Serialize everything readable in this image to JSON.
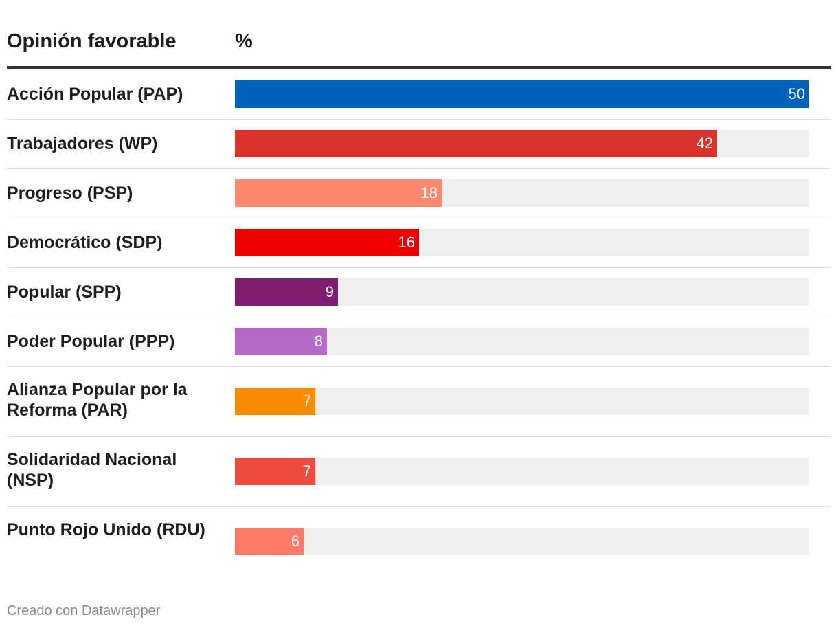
{
  "chart_data": {
    "type": "bar",
    "orientation": "horizontal",
    "header_label": "Opinión favorable",
    "header_unit": "%",
    "categories": [
      "Acción Popular (PAP)",
      "Trabajadores (WP)",
      "Progreso (PSP)",
      "Democrático (SDP)",
      "Popular (SPP)",
      "Poder Popular (PPP)",
      "Alianza Popular por la Reforma (PAR)",
      "Solidaridad Nacional (NSP)",
      "Punto Rojo Unido (RDU)"
    ],
    "values": [
      50,
      42,
      18,
      16,
      9,
      8,
      7,
      7,
      6
    ],
    "colors": [
      "#0062bb",
      "#d9322d",
      "#ff8a70",
      "#ee0000",
      "#7e1e6e",
      "#b46cc8",
      "#f78c00",
      "#ee4c40",
      "#ff7b68"
    ],
    "track_color": "#eeeeee",
    "xlim": [
      0,
      50
    ]
  },
  "footer": {
    "credit": "Creado con Datawrapper"
  }
}
